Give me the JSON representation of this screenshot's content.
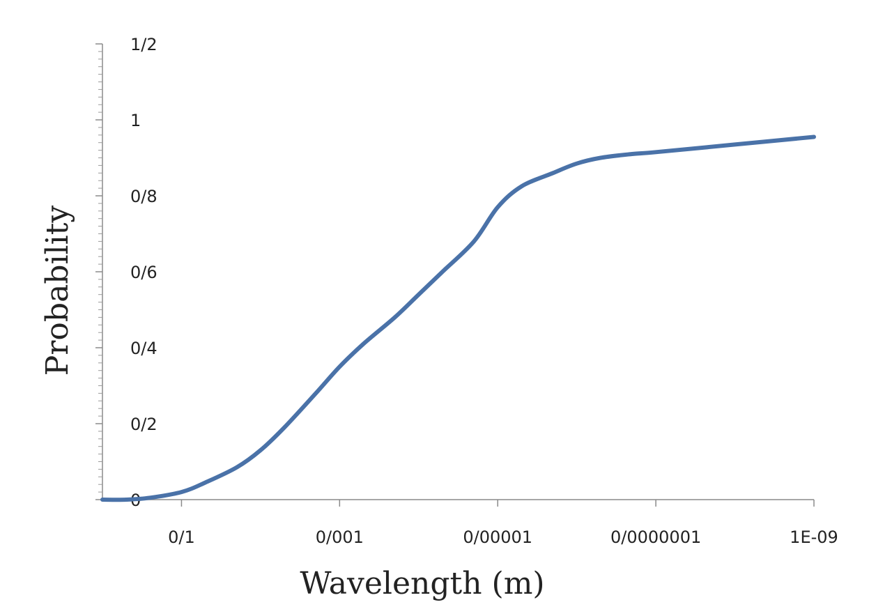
{
  "chart_data": {
    "type": "line",
    "title": "",
    "xlabel": "Wavelength (m)",
    "ylabel": "Probability",
    "x_scale": "log",
    "x_direction": "decreasing",
    "xlim": [
      1,
      1e-09
    ],
    "ylim": [
      0,
      1.2
    ],
    "x_ticks": [
      {
        "value": 0.1,
        "label": "0/1"
      },
      {
        "value": 0.001,
        "label": "0/001"
      },
      {
        "value": 1e-05,
        "label": "0/00001"
      },
      {
        "value": 1e-07,
        "label": "0/0000001"
      },
      {
        "value": 1e-09,
        "label": "1E-09"
      }
    ],
    "y_ticks": [
      {
        "value": 0,
        "label": "0"
      },
      {
        "value": 0.2,
        "label": "0/2"
      },
      {
        "value": 0.4,
        "label": "0/4"
      },
      {
        "value": 0.6,
        "label": "0/6"
      },
      {
        "value": 0.8,
        "label": "0/8"
      },
      {
        "value": 1.0,
        "label": "1"
      },
      {
        "value": 1.2,
        "label": "1/2"
      }
    ],
    "grid": false,
    "legend": "none",
    "series": [
      {
        "color": "#4a72a8",
        "x": [
          1,
          0.5,
          0.25,
          0.1,
          0.05,
          0.02,
          0.01,
          0.005,
          0.002,
          0.001,
          0.0005,
          0.0002,
          0.0001,
          5e-05,
          2e-05,
          1e-05,
          5e-06,
          2e-06,
          1e-06,
          5e-07,
          2e-07,
          1e-07,
          1e-08,
          1e-09
        ],
        "y": [
          0.0,
          0.0,
          0.005,
          0.02,
          0.045,
          0.085,
          0.13,
          0.19,
          0.28,
          0.35,
          0.41,
          0.48,
          0.54,
          0.6,
          0.68,
          0.77,
          0.825,
          0.86,
          0.885,
          0.9,
          0.91,
          0.915,
          0.935,
          0.955
        ]
      }
    ]
  }
}
